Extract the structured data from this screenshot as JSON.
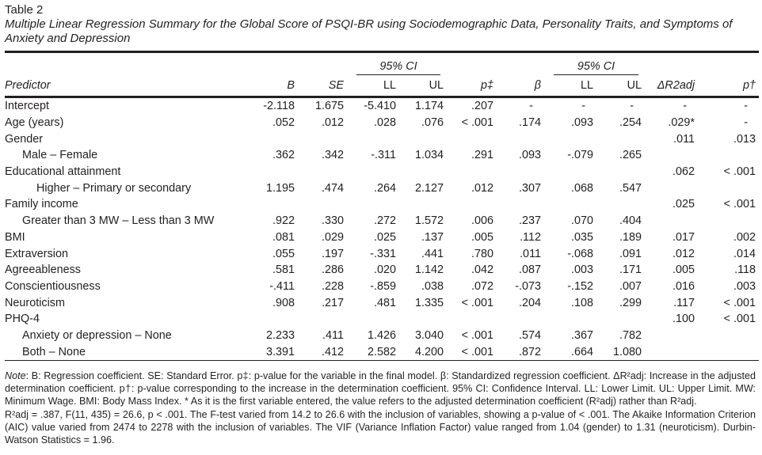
{
  "table_label": "Table 2",
  "title": "Multiple Linear Regression Summary for the Global Score of PSQI-BR using Sociodemographic Data, Personality Traits, and Symptoms of Anxiety and Depression",
  "ci_group_label": "95% CI",
  "headers": [
    "Predictor",
    "B",
    "SE",
    "LL",
    "UL",
    "p‡",
    "β",
    "LL",
    "UL",
    "ΔR2adj",
    "p†"
  ],
  "rows": [
    {
      "label": "Intercept",
      "indent": 0,
      "cells": [
        "-2.118",
        "1.675",
        "-5.410",
        "1.174",
        ".207",
        "-",
        "-",
        "-",
        "-",
        "-"
      ]
    },
    {
      "label": "Age (years)",
      "indent": 0,
      "cells": [
        ".052",
        ".012",
        ".028",
        ".076",
        "< .001",
        ".174",
        ".093",
        ".254",
        ".029*",
        "-"
      ]
    },
    {
      "label": "Gender",
      "indent": 0,
      "cells": [
        "",
        "",
        "",
        "",
        "",
        "",
        "",
        "",
        ".011",
        ".013"
      ]
    },
    {
      "label": "Male – Female",
      "indent": 1,
      "cells": [
        ".362",
        ".342",
        "-.311",
        "1.034",
        ".291",
        ".093",
        "-.079",
        ".265",
        "",
        ""
      ]
    },
    {
      "label": "Educational attainment",
      "indent": 0,
      "cells": [
        "",
        "",
        "",
        "",
        "",
        "",
        "",
        "",
        ".062",
        "< .001"
      ]
    },
    {
      "label": "Higher – Primary or secondary",
      "indent": 2,
      "cells": [
        "1.195",
        ".474",
        ".264",
        "2.127",
        ".012",
        ".307",
        ".068",
        ".547",
        "",
        ""
      ]
    },
    {
      "label": "Family income",
      "indent": 0,
      "cells": [
        "",
        "",
        "",
        "",
        "",
        "",
        "",
        "",
        ".025",
        "< .001"
      ]
    },
    {
      "label": "Greater than 3 MW – Less than 3 MW",
      "indent": 1,
      "cells": [
        ".922",
        ".330",
        ".272",
        "1.572",
        ".006",
        ".237",
        ".070",
        ".404",
        "",
        ""
      ]
    },
    {
      "label": "BMI",
      "indent": 0,
      "cells": [
        ".081",
        ".029",
        ".025",
        ".137",
        ".005",
        ".112",
        ".035",
        ".189",
        ".017",
        ".002"
      ]
    },
    {
      "label": "Extraversion",
      "indent": 0,
      "cells": [
        ".055",
        ".197",
        "-.331",
        ".441",
        ".780",
        ".011",
        "-.068",
        ".091",
        ".012",
        ".014"
      ]
    },
    {
      "label": "Agreeableness",
      "indent": 0,
      "cells": [
        ".581",
        ".286",
        ".020",
        "1.142",
        ".042",
        ".087",
        ".003",
        ".171",
        ".005",
        ".118"
      ]
    },
    {
      "label": "Conscientiousness",
      "indent": 0,
      "cells": [
        "-.411",
        ".228",
        "-.859",
        ".038",
        ".072",
        "-.073",
        "-.152",
        ".007",
        ".016",
        ".003"
      ]
    },
    {
      "label": "Neuroticism",
      "indent": 0,
      "cells": [
        ".908",
        ".217",
        ".481",
        "1.335",
        "< .001",
        ".204",
        ".108",
        ".299",
        ".117",
        "< .001"
      ]
    },
    {
      "label": "PHQ-4",
      "indent": 0,
      "cells": [
        "",
        "",
        "",
        "",
        "",
        "",
        "",
        "",
        ".100",
        "< .001"
      ]
    },
    {
      "label": "Anxiety or depression – None",
      "indent": 1,
      "cells": [
        "2.233",
        ".411",
        "1.426",
        "3.040",
        "< .001",
        ".574",
        ".367",
        ".782",
        "",
        ""
      ]
    },
    {
      "label": "Both – None",
      "indent": 1,
      "cells": [
        "3.391",
        ".412",
        "2.582",
        "4.200",
        "< .001",
        ".872",
        ".664",
        "1.080",
        "",
        ""
      ]
    }
  ],
  "note": {
    "p1_label": "Note",
    "p1": ": B: Regression coefficient. SE: Standard Error. p‡: p-value for the variable in the final model. β: Standardized regression coefficient. ΔR²adj: Increase in the adjusted determination coefficient. p†: p-value corresponding to the increase in the determination coefficient. 95% CI: Confidence Interval. LL: Lower Limit. UL: Upper Limit. MW: Minimum Wage. BMI: Body Mass Index. * As it is the first variable entered, the value refers to the adjusted determination coefficient (R²adj) rather than R²adj.",
    "p2": "R²adj = .387, F(11, 435) = 26.6, p < .001. The F-test varied from 14.2 to 26.6 with the inclusion of variables, showing a p-value of < .001. The Akaike Information Criterion (AIC) value varied from 2474 to 2278 with the inclusion of variables. The VIF (Variance Inflation Factor) value ranged from 1.04 (gender) to 1.31 (neuroticism). Durbin-Watson Statistics = 1.96."
  }
}
